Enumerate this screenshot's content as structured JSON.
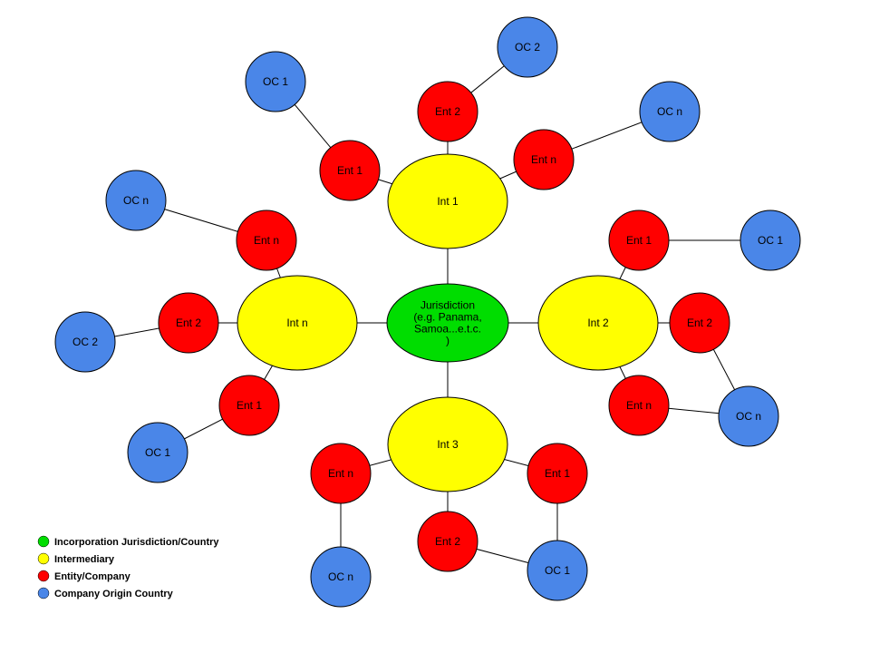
{
  "colors": {
    "jurisdiction": "#00dd00",
    "intermediary": "#ffff00",
    "entity": "#ff0000",
    "origin": "#4a86e8"
  },
  "jurisdiction": {
    "lines": [
      "Jurisdiction",
      "(e.g. Panama,",
      "Samoa...e.t.c.",
      ")"
    ]
  },
  "intermediaries": [
    {
      "id": "int1",
      "label": "Int 1"
    },
    {
      "id": "int2",
      "label": "Int 2"
    },
    {
      "id": "int3",
      "label": "Int 3"
    },
    {
      "id": "intn",
      "label": "Int n"
    }
  ],
  "entities": [
    {
      "id": "i1_e2",
      "label": "Ent 2"
    },
    {
      "id": "i1_e1",
      "label": "Ent 1"
    },
    {
      "id": "i1_en",
      "label": "Ent n"
    },
    {
      "id": "i2_e1",
      "label": "Ent 1"
    },
    {
      "id": "i2_e2",
      "label": "Ent 2"
    },
    {
      "id": "i2_en",
      "label": "Ent n"
    },
    {
      "id": "i3_en",
      "label": "Ent n"
    },
    {
      "id": "i3_e2",
      "label": "Ent 2"
    },
    {
      "id": "i3_e1",
      "label": "Ent 1"
    },
    {
      "id": "in_en",
      "label": "Ent n"
    },
    {
      "id": "in_e2",
      "label": "Ent 2"
    },
    {
      "id": "in_e1",
      "label": "Ent 1"
    }
  ],
  "origins": [
    {
      "id": "oc_top2",
      "label": "OC 2"
    },
    {
      "id": "oc_top1",
      "label": "OC 1"
    },
    {
      "id": "oc_topn",
      "label": "OC n"
    },
    {
      "id": "oc_leftn",
      "label": "OC n"
    },
    {
      "id": "oc_left2",
      "label": "OC 2"
    },
    {
      "id": "oc_left1",
      "label": "OC 1"
    },
    {
      "id": "oc_right1",
      "label": "OC 1"
    },
    {
      "id": "oc_rightn",
      "label": "OC n"
    },
    {
      "id": "oc_botn",
      "label": "OC n"
    },
    {
      "id": "oc_bot1",
      "label": "OC 1"
    }
  ],
  "legend": [
    {
      "key": "jurisdiction",
      "label": "Incorporation Jurisdiction/Country"
    },
    {
      "key": "intermediary",
      "label": "Intermediary"
    },
    {
      "key": "entity",
      "label": "Entity/Company"
    },
    {
      "key": "origin",
      "label": "Company Origin Country"
    }
  ]
}
